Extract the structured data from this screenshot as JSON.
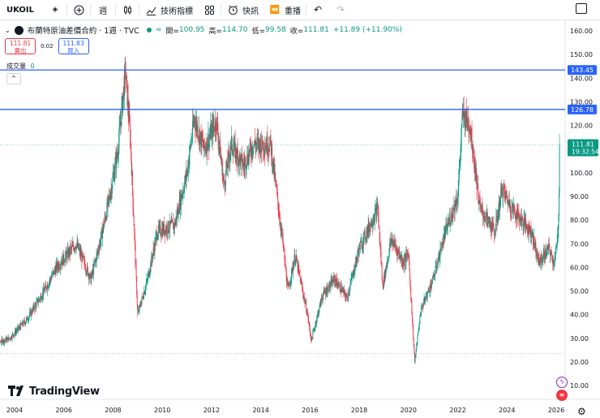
{
  "toolbar": {
    "symbol": "UKOIL",
    "interval": "週",
    "indicators_label": "技術指標",
    "alerts_label": "快訊",
    "replay_label": "重播"
  },
  "legend": {
    "title": "布蘭特原油差價合約 · 1週 · TVC",
    "open_key": "開=",
    "open": "100.95",
    "high_key": "高=",
    "high": "114.70",
    "low_key": "低=",
    "low": "99.58",
    "close_key": "收=",
    "close": "111.81",
    "change": "+11.89 (+11.90%)"
  },
  "trade": {
    "sell_price": "111.81",
    "sell_label": "賣出",
    "spread": "0.02",
    "buy_price": "111.83",
    "buy_label": "買入"
  },
  "volume": {
    "label": "成交量",
    "value": "0"
  },
  "branding": {
    "logo_text": "TradingView"
  },
  "colors": {
    "up": "#089981",
    "down": "#f23645",
    "hline": "#2962ff",
    "accent": "#2962ff"
  },
  "chart_data": {
    "type": "candlestick",
    "interval": "1W",
    "x_range": [
      "2003-01",
      "2026-09"
    ],
    "ylim": [
      10,
      163
    ],
    "y_ticks": [
      "160.00",
      "150.00",
      "140.00",
      "130.00",
      "120.00",
      "110.00",
      "100.00",
      "90.00",
      "80.00",
      "70.00",
      "60.00",
      "50.00",
      "40.00",
      "30.00",
      "20.00",
      "10.00"
    ],
    "x_ticks": [
      {
        "label": "2004",
        "year": 2004
      },
      {
        "label": "2006",
        "year": 2006
      },
      {
        "label": "2008",
        "year": 2008
      },
      {
        "label": "2010",
        "year": 2010
      },
      {
        "label": "2012",
        "year": 2012
      },
      {
        "label": "2014",
        "year": 2014
      },
      {
        "label": "2016",
        "year": 2016
      },
      {
        "label": "2018",
        "year": 2018
      },
      {
        "label": "2020",
        "year": 2020
      },
      {
        "label": "2022",
        "year": 2022
      },
      {
        "label": "2024",
        "year": 2024
      },
      {
        "label": "2026",
        "year": 2026
      }
    ],
    "horizontal_lines": [
      {
        "value": 143.45,
        "label": "143.45"
      },
      {
        "value": 126.78,
        "label": "126.78"
      }
    ],
    "reference_line": {
      "value": 23.5
    },
    "last_price": {
      "value": 111.81,
      "label": "111.81",
      "countdown": "19:32:54"
    },
    "price_path": [
      [
        2003.0,
        27
      ],
      [
        2003.8,
        30
      ],
      [
        2004.5,
        38
      ],
      [
        2005.2,
        50
      ],
      [
        2005.7,
        60
      ],
      [
        2006.5,
        70
      ],
      [
        2007.1,
        55
      ],
      [
        2007.5,
        72
      ],
      [
        2007.9,
        92
      ],
      [
        2008.2,
        110
      ],
      [
        2008.5,
        143
      ],
      [
        2008.7,
        115
      ],
      [
        2008.9,
        65
      ],
      [
        2009.0,
        40
      ],
      [
        2009.4,
        55
      ],
      [
        2009.8,
        75
      ],
      [
        2010.5,
        78
      ],
      [
        2011.0,
        100
      ],
      [
        2011.3,
        123
      ],
      [
        2011.7,
        110
      ],
      [
        2012.2,
        122
      ],
      [
        2012.5,
        95
      ],
      [
        2012.8,
        112
      ],
      [
        2013.3,
        103
      ],
      [
        2013.7,
        112
      ],
      [
        2014.4,
        112
      ],
      [
        2014.9,
        70
      ],
      [
        2015.1,
        50
      ],
      [
        2015.4,
        65
      ],
      [
        2015.9,
        40
      ],
      [
        2016.05,
        29
      ],
      [
        2016.5,
        48
      ],
      [
        2017.0,
        55
      ],
      [
        2017.5,
        47
      ],
      [
        2018.0,
        68
      ],
      [
        2018.75,
        85
      ],
      [
        2018.95,
        52
      ],
      [
        2019.3,
        72
      ],
      [
        2019.8,
        62
      ],
      [
        2020.0,
        66
      ],
      [
        2020.25,
        20
      ],
      [
        2020.5,
        42
      ],
      [
        2021.0,
        55
      ],
      [
        2021.5,
        75
      ],
      [
        2022.0,
        90
      ],
      [
        2022.2,
        125
      ],
      [
        2022.5,
        120
      ],
      [
        2022.9,
        85
      ],
      [
        2023.5,
        75
      ],
      [
        2023.8,
        93
      ],
      [
        2024.2,
        85
      ],
      [
        2024.6,
        80
      ],
      [
        2025.0,
        75
      ],
      [
        2025.3,
        62
      ],
      [
        2025.7,
        68
      ],
      [
        2025.9,
        62
      ],
      [
        2026.05,
        70
      ],
      [
        2026.1,
        85
      ],
      [
        2026.15,
        111.81
      ]
    ]
  }
}
